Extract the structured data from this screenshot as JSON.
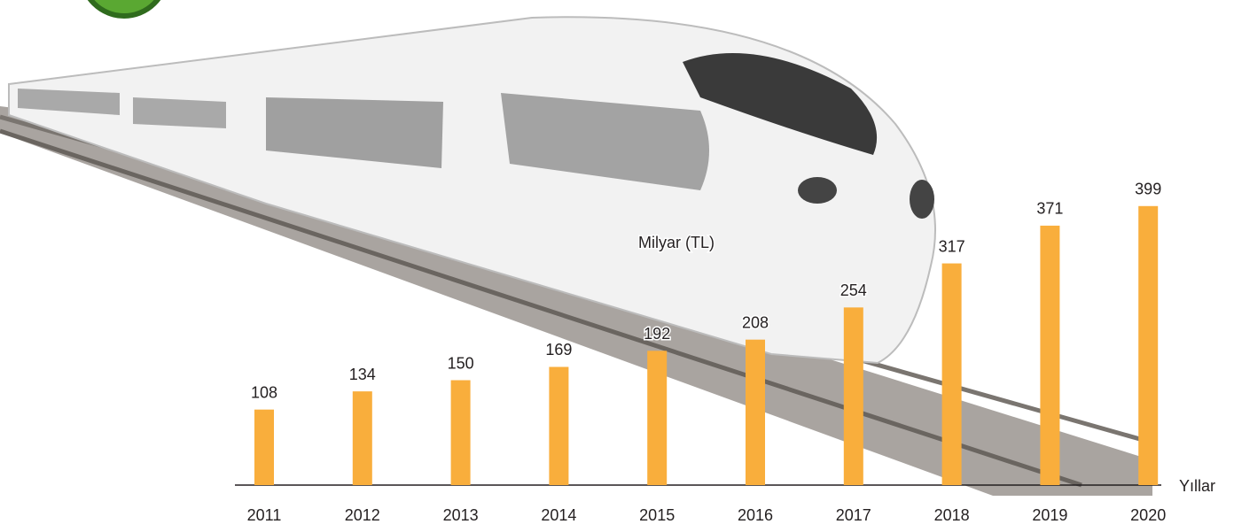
{
  "chart_data": {
    "type": "bar",
    "y_label": "Milyar (TL)",
    "x_label": "Yıllar",
    "categories": [
      "2011",
      "2012",
      "2013",
      "2014",
      "2015",
      "2016",
      "2017",
      "2018",
      "2019",
      "2020"
    ],
    "values": [
      108,
      134,
      150,
      169,
      192,
      208,
      254,
      317,
      371,
      399
    ],
    "color": "#f9ae3c"
  }
}
